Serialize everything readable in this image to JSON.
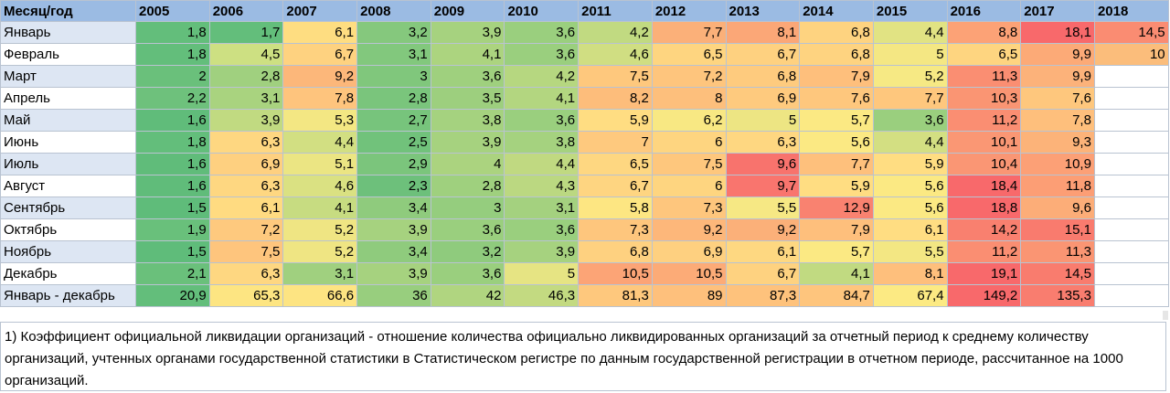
{
  "header": {
    "label": "Месяц/год",
    "years": [
      "2005",
      "2006",
      "2007",
      "2008",
      "2009",
      "2010",
      "2011",
      "2012",
      "2013",
      "2014",
      "2015",
      "2016",
      "2017",
      "2018"
    ]
  },
  "rows": [
    {
      "label": "Январь",
      "values": [
        "1,8",
        "1,7",
        "6,1",
        "3,2",
        "3,9",
        "3,6",
        "4,2",
        "7,7",
        "8,1",
        "6,8",
        "4,4",
        "8,8",
        "18,1",
        "14,5"
      ]
    },
    {
      "label": "Февраль",
      "values": [
        "1,8",
        "4,5",
        "6,7",
        "3,1",
        "4,1",
        "3,6",
        "4,6",
        "6,5",
        "6,7",
        "6,8",
        "5",
        "6,5",
        "9,9",
        "10"
      ]
    },
    {
      "label": "Март",
      "values": [
        "2",
        "2,8",
        "9,2",
        "3",
        "3,6",
        "4,2",
        "7,5",
        "7,2",
        "6,8",
        "7,9",
        "5,2",
        "11,3",
        "9,9",
        ""
      ]
    },
    {
      "label": "Апрель",
      "values": [
        "2,2",
        "3,1",
        "7,8",
        "2,8",
        "3,5",
        "4,1",
        "8,2",
        "8",
        "6,9",
        "7,6",
        "7,7",
        "10,3",
        "7,6",
        ""
      ]
    },
    {
      "label": "Май",
      "values": [
        "1,6",
        "3,9",
        "5,3",
        "2,7",
        "3,8",
        "3,6",
        "5,9",
        "6,2",
        "5",
        "5,7",
        "3,6",
        "11,2",
        "7,8",
        ""
      ]
    },
    {
      "label": "Июнь",
      "values": [
        "1,8",
        "6,3",
        "4,4",
        "2,5",
        "3,9",
        "3,8",
        "7",
        "6",
        "6,3",
        "5,6",
        "4,4",
        "10,1",
        "9,3",
        ""
      ]
    },
    {
      "label": "Июль",
      "values": [
        "1,6",
        "6,9",
        "5,1",
        "2,9",
        "4",
        "4,4",
        "6,5",
        "7,5",
        "9,6",
        "7,7",
        "5,9",
        "10,4",
        "10,9",
        ""
      ]
    },
    {
      "label": "Август",
      "values": [
        "1,6",
        "6,3",
        "4,6",
        "2,3",
        "2,8",
        "4,3",
        "6,7",
        "6",
        "9,7",
        "5,9",
        "5,6",
        "18,4",
        "11,8",
        ""
      ]
    },
    {
      "label": "Сентябрь",
      "values": [
        "1,5",
        "6,1",
        "4,1",
        "3,4",
        "3",
        "3,1",
        "5,8",
        "7,3",
        "5,5",
        "12,9",
        "5,6",
        "18,8",
        "9,6",
        ""
      ]
    },
    {
      "label": "Октябрь",
      "values": [
        "1,9",
        "7,2",
        "5,2",
        "3,9",
        "3,6",
        "3,6",
        "7,3",
        "9,2",
        "9,2",
        "7,9",
        "6,1",
        "14,2",
        "15,1",
        ""
      ]
    },
    {
      "label": "Ноябрь",
      "values": [
        "1,5",
        "7,5",
        "5,2",
        "3,4",
        "3,2",
        "3,9",
        "6,8",
        "6,9",
        "6,1",
        "5,7",
        "5,5",
        "11,2",
        "11,3",
        ""
      ]
    },
    {
      "label": "Декабрь",
      "values": [
        "2,1",
        "6,3",
        "3,1",
        "3,9",
        "3,6",
        "5",
        "10,5",
        "10,5",
        "6,7",
        "4,1",
        "8,1",
        "19,1",
        "14,5",
        ""
      ]
    },
    {
      "label": "Январь - декабрь",
      "values": [
        "20,9",
        "65,3",
        "66,6",
        "36",
        "42",
        "46,3",
        "81,3",
        "89",
        "87,3",
        "84,7",
        "67,4",
        "149,2",
        "135,3",
        ""
      ]
    }
  ],
  "colors": {
    "rows": [
      [
        "#63be7b",
        "#63be7b",
        "#fedd81",
        "#85c87d",
        "#a6d27f",
        "#9acf7e",
        "#c1da81",
        "#fbb079",
        "#fba777",
        "#fed380",
        "#e1e383",
        "#fca276",
        "#f8696b",
        "#fa8c72"
      ],
      [
        "#63be7b",
        "#cde082",
        "#fed280",
        "#82c87d",
        "#acd47f",
        "#9acf7e",
        "#d0de82",
        "#fed580",
        "#fed180",
        "#fed380",
        "#f4e783",
        "#fed580",
        "#fcaa77",
        "#fbbd7b"
      ],
      [
        "#6ac07b",
        "#a0d07f",
        "#fcb77a",
        "#80c77c",
        "#9fd07e",
        "#b6d780",
        "#fec87d",
        "#fec57d",
        "#fecb7e",
        "#febf7c",
        "#f6e984",
        "#fa8e72",
        "#fcb27a",
        ""
      ],
      [
        "#6ec17c",
        "#a9d37f",
        "#fec47d",
        "#7ac57c",
        "#9dcf7e",
        "#b3d680",
        "#fdbd7b",
        "#fdbf7c",
        "#feca7e",
        "#fec77d",
        "#fec77d",
        "#fa9573",
        "#fec77d",
        ""
      ],
      [
        "#60bc7a",
        "#c1da81",
        "#f3e783",
        "#77c47c",
        "#a5d27f",
        "#9acf7e",
        "#ffdd82",
        "#f8e883",
        "#ede583",
        "#fbe983",
        "#9acf7e",
        "#fa8e72",
        "#febf7c",
        ""
      ],
      [
        "#63be7b",
        "#fed781",
        "#d2df82",
        "#71c27b",
        "#a6d27f",
        "#a5d27f",
        "#fec97e",
        "#fed580",
        "#fed781",
        "#fbe983",
        "#d3df82",
        "#fa9774",
        "#fcb379",
        ""
      ],
      [
        "#60bc7a",
        "#fed080",
        "#ebe583",
        "#7bc57c",
        "#abd37f",
        "#c0d981",
        "#fed781",
        "#fec77d",
        "#f8736d",
        "#fec07c",
        "#ffdd82",
        "#fa9674",
        "#fca076",
        ""
      ],
      [
        "#60bc7a",
        "#fed781",
        "#dae182",
        "#6dc07b",
        "#9fd07e",
        "#bbd881",
        "#fed581",
        "#fed580",
        "#f9756e",
        "#ffdd82",
        "#fbe983",
        "#f8696b",
        "#fc9e75",
        ""
      ],
      [
        "#5fbc7a",
        "#ffdb81",
        "#c7dc81",
        "#8fcb7d",
        "#95cd7e",
        "#a4d17f",
        "#fde682",
        "#fec67d",
        "#f6e884",
        "#f98270",
        "#fbe983",
        "#f8696b",
        "#fcad78",
        ""
      ],
      [
        "#69c07b",
        "#fec97e",
        "#efe583",
        "#a6d27f",
        "#9acf7e",
        "#9acf7e",
        "#fec67d",
        "#fdb77a",
        "#fbb079",
        "#febf7c",
        "#ffdd82",
        "#f9806f",
        "#f97b6e",
        ""
      ],
      [
        "#5fbc7a",
        "#fec57d",
        "#efe583",
        "#8fcb7d",
        "#8fcb7d",
        "#a6d27f",
        "#fed180",
        "#fed080",
        "#fed881",
        "#fbe983",
        "#f3e783",
        "#fa8e72",
        "#fa9573",
        ""
      ],
      [
        "#6ac07b",
        "#fed781",
        "#a0d07f",
        "#a6d27f",
        "#9acf7e",
        "#e6e483",
        "#fca476",
        "#fcab77",
        "#fed280",
        "#c1da81",
        "#febf7c",
        "#f8696b",
        "#f97c6e",
        ""
      ],
      [
        "#63be7b",
        "#fde582",
        "#fde482",
        "#98ce7e",
        "#b0d580",
        "#c3da81",
        "#fec87d",
        "#fec07c",
        "#fec27c",
        "#fec57d",
        "#fcea83",
        "#f8696b",
        "#f97d6f",
        ""
      ]
    ]
  },
  "note": {
    "text": "1) Коэффициент официальной ликвидации организаций - отношение количества официально ликвидированных организаций за отчетный период к среднему количеству организаций, учтенных  органами государственной статистики в Статистическом регистре по данным государственной регистрации в отчетном периоде, рассчитанное на 1000 организаций."
  }
}
